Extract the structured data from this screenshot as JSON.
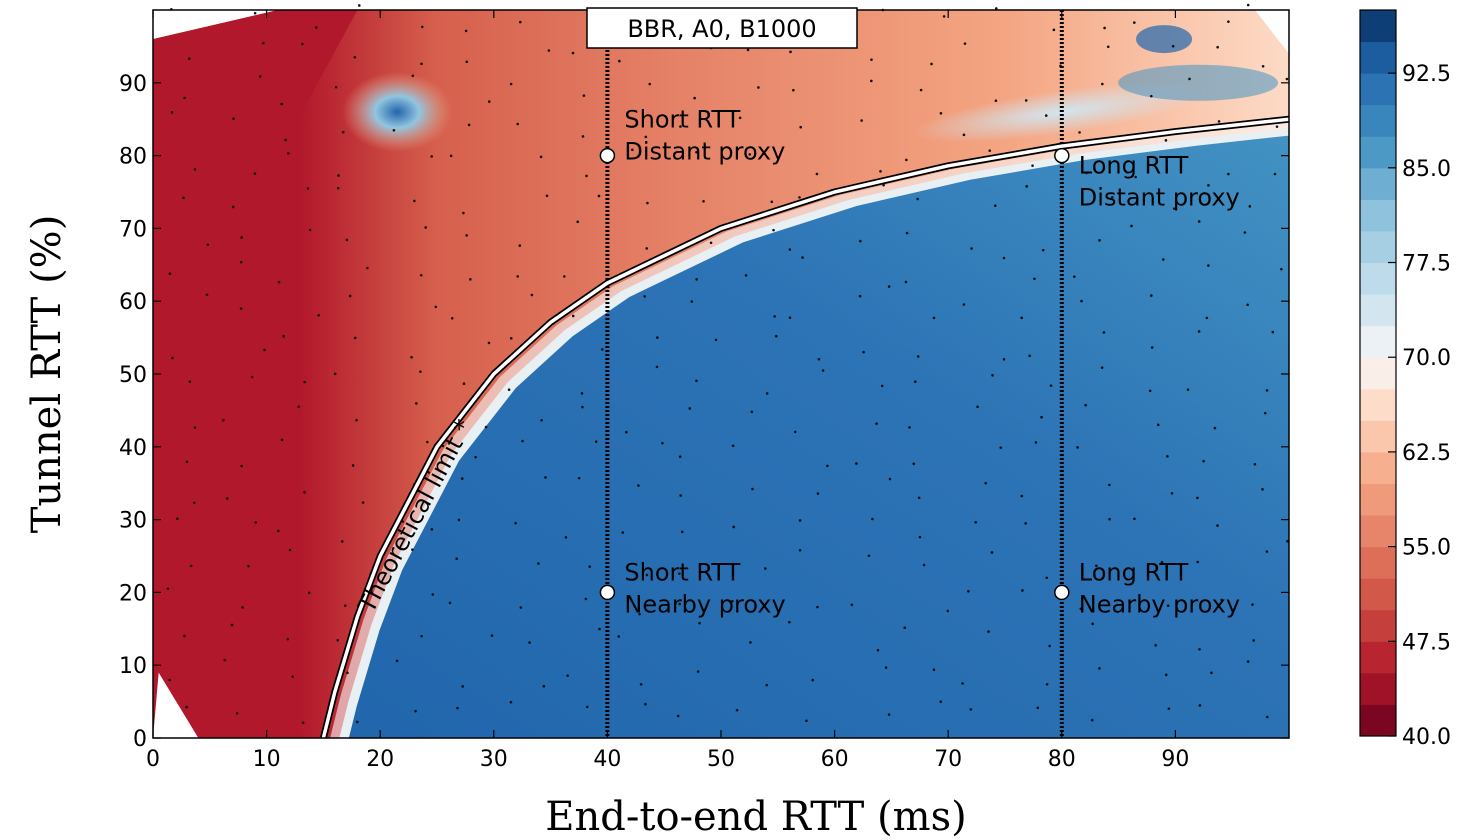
{
  "chart_data": {
    "type": "heatmap",
    "title": "BBR, A0, B1000",
    "xlabel": "End-to-end RTT (ms)",
    "ylabel": "Tunnel RTT (%)",
    "xlim": [
      0,
      100
    ],
    "ylim": [
      0,
      100
    ],
    "x_ticks": [
      "0",
      "10",
      "20",
      "30",
      "40",
      "50",
      "60",
      "70",
      "80",
      "90"
    ],
    "y_ticks": [
      "0",
      "10",
      "20",
      "30",
      "40",
      "50",
      "60",
      "70",
      "80",
      "90"
    ],
    "colorbar": {
      "range": [
        40.0,
        97.5
      ],
      "ticks": [
        "40.0",
        "47.5",
        "55.0",
        "62.5",
        "70.0",
        "77.5",
        "85.0",
        "92.5"
      ],
      "colormap": "RdBu"
    },
    "curve": {
      "label": "Theoretical limit *",
      "x": [
        15,
        16,
        18,
        20,
        25,
        30,
        35,
        40,
        50,
        60,
        70,
        80,
        90,
        100
      ],
      "y": [
        0,
        6.3,
        16.7,
        25,
        40,
        50,
        57.1,
        62.5,
        70,
        75,
        78.6,
        81.3,
        83.3,
        85
      ]
    },
    "vertical_lines": [
      40,
      80
    ],
    "points": [
      {
        "x": 40,
        "y": 80,
        "label1": "Short RTT",
        "label2": "Distant proxy"
      },
      {
        "x": 80,
        "y": 80,
        "label1": "Long RTT",
        "label2": "Distant proxy"
      },
      {
        "x": 40,
        "y": 20,
        "label1": "Short RTT",
        "label2": "Nearby proxy"
      },
      {
        "x": 80,
        "y": 20,
        "label1": "Long RTT",
        "label2": "Nearby proxy"
      }
    ],
    "field_samples": [
      {
        "x": 2,
        "y": 50,
        "v": 44
      },
      {
        "x": 8,
        "y": 50,
        "v": 45
      },
      {
        "x": 12,
        "y": 45,
        "v": 55
      },
      {
        "x": 15,
        "y": 80,
        "v": 57
      },
      {
        "x": 21,
        "y": 86,
        "v": 92
      },
      {
        "x": 25,
        "y": 75,
        "v": 57
      },
      {
        "x": 30,
        "y": 90,
        "v": 58
      },
      {
        "x": 30,
        "y": 30,
        "v": 90
      },
      {
        "x": 50,
        "y": 40,
        "v": 90
      },
      {
        "x": 60,
        "y": 85,
        "v": 62
      },
      {
        "x": 80,
        "y": 40,
        "v": 87
      },
      {
        "x": 90,
        "y": 20,
        "v": 85
      },
      {
        "x": 88,
        "y": 95,
        "v": 90
      }
    ]
  }
}
